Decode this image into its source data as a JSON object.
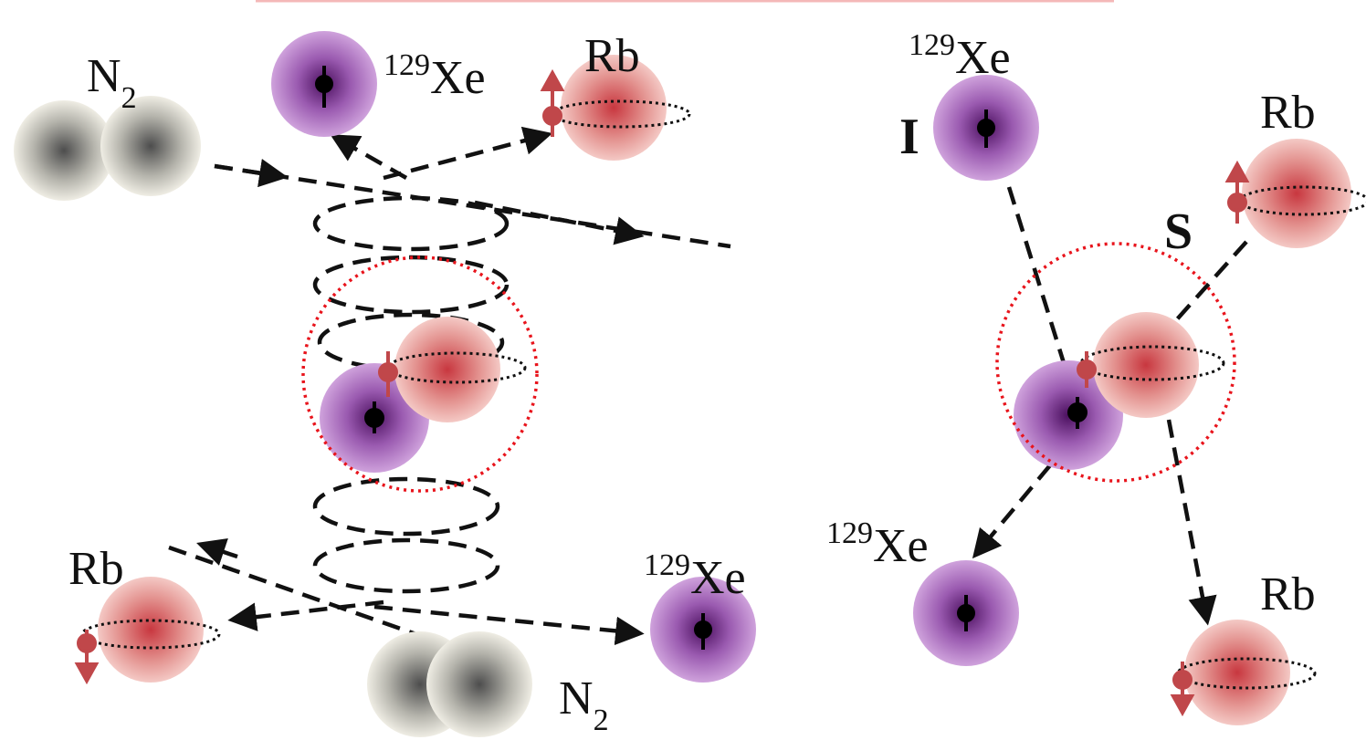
{
  "left_panel": {
    "labels": [
      {
        "main": "N",
        "sub": "2"
      },
      {
        "sup": "129",
        "main": "Xe"
      },
      {
        "main": "Rb"
      },
      {
        "main": "Rb"
      },
      {
        "sup": "129",
        "main": "Xe"
      },
      {
        "main": "N",
        "sub": "2"
      }
    ]
  },
  "right_panel": {
    "labels": [
      {
        "sup": "129",
        "main": "Xe"
      },
      {
        "main": "I"
      },
      {
        "main": "Rb"
      },
      {
        "main": "S"
      },
      {
        "sup": "129",
        "main": "Xe"
      },
      {
        "main": "Rb"
      }
    ]
  }
}
